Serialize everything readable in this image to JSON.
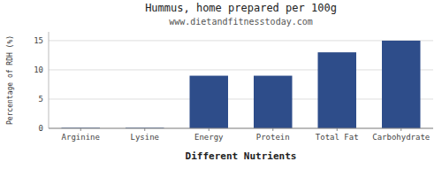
{
  "chart_data": {
    "type": "bar",
    "title": "Hummus, home prepared per 100g",
    "subtitle": "www.dietandfitnesstoday.com",
    "categories": [
      "Arginine",
      "Lysine",
      "Energy",
      "Protein",
      "Total Fat",
      "Carbohydrate"
    ],
    "values": [
      0.1,
      0.1,
      9.0,
      9.0,
      13.0,
      15.0
    ],
    "color": "#2e4d8a",
    "xlabel": "Different Nutrients",
    "ylabel": "Percentage of RDH (%)",
    "ylim": [
      0,
      16.5
    ],
    "yticks": [
      0,
      5,
      10,
      15
    ],
    "grid": true
  }
}
